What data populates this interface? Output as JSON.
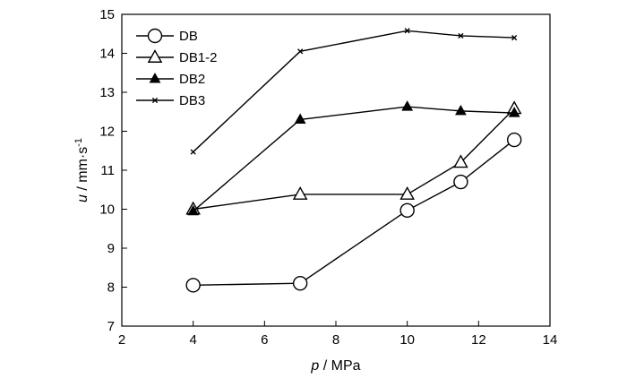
{
  "chart_data": {
    "type": "line",
    "title": "",
    "xlabel": {
      "var": "p",
      "unit": " / MPa"
    },
    "ylabel": {
      "var": "u",
      "unit": " / mm·s",
      "sup": "-1"
    },
    "xlim": [
      2,
      14
    ],
    "ylim": [
      7,
      15
    ],
    "xticks": [
      2,
      4,
      6,
      8,
      10,
      12,
      14
    ],
    "yticks": [
      7,
      8,
      9,
      10,
      11,
      12,
      13,
      14,
      15
    ],
    "grid": false,
    "legend_position": "top-left",
    "series": [
      {
        "name": "DB",
        "marker": "open-circle",
        "color": "#000000",
        "x": [
          4,
          7,
          10,
          11.5,
          13
        ],
        "y": [
          8.05,
          8.1,
          9.97,
          10.7,
          11.78
        ]
      },
      {
        "name": "DB1-2",
        "marker": "open-triangle",
        "color": "#000000",
        "x": [
          4,
          7,
          10,
          11.5,
          13
        ],
        "y": [
          10.0,
          10.38,
          10.38,
          11.2,
          12.58
        ]
      },
      {
        "name": "DB2",
        "marker": "filled-triangle",
        "color": "#000000",
        "x": [
          4,
          7,
          10,
          11.5,
          13
        ],
        "y": [
          9.95,
          12.3,
          12.63,
          12.52,
          12.47
        ]
      },
      {
        "name": "DB3",
        "marker": "small-x",
        "color": "#000000",
        "x": [
          4,
          7,
          10,
          11.5,
          13
        ],
        "y": [
          11.47,
          14.05,
          14.58,
          14.45,
          14.4
        ]
      }
    ]
  }
}
